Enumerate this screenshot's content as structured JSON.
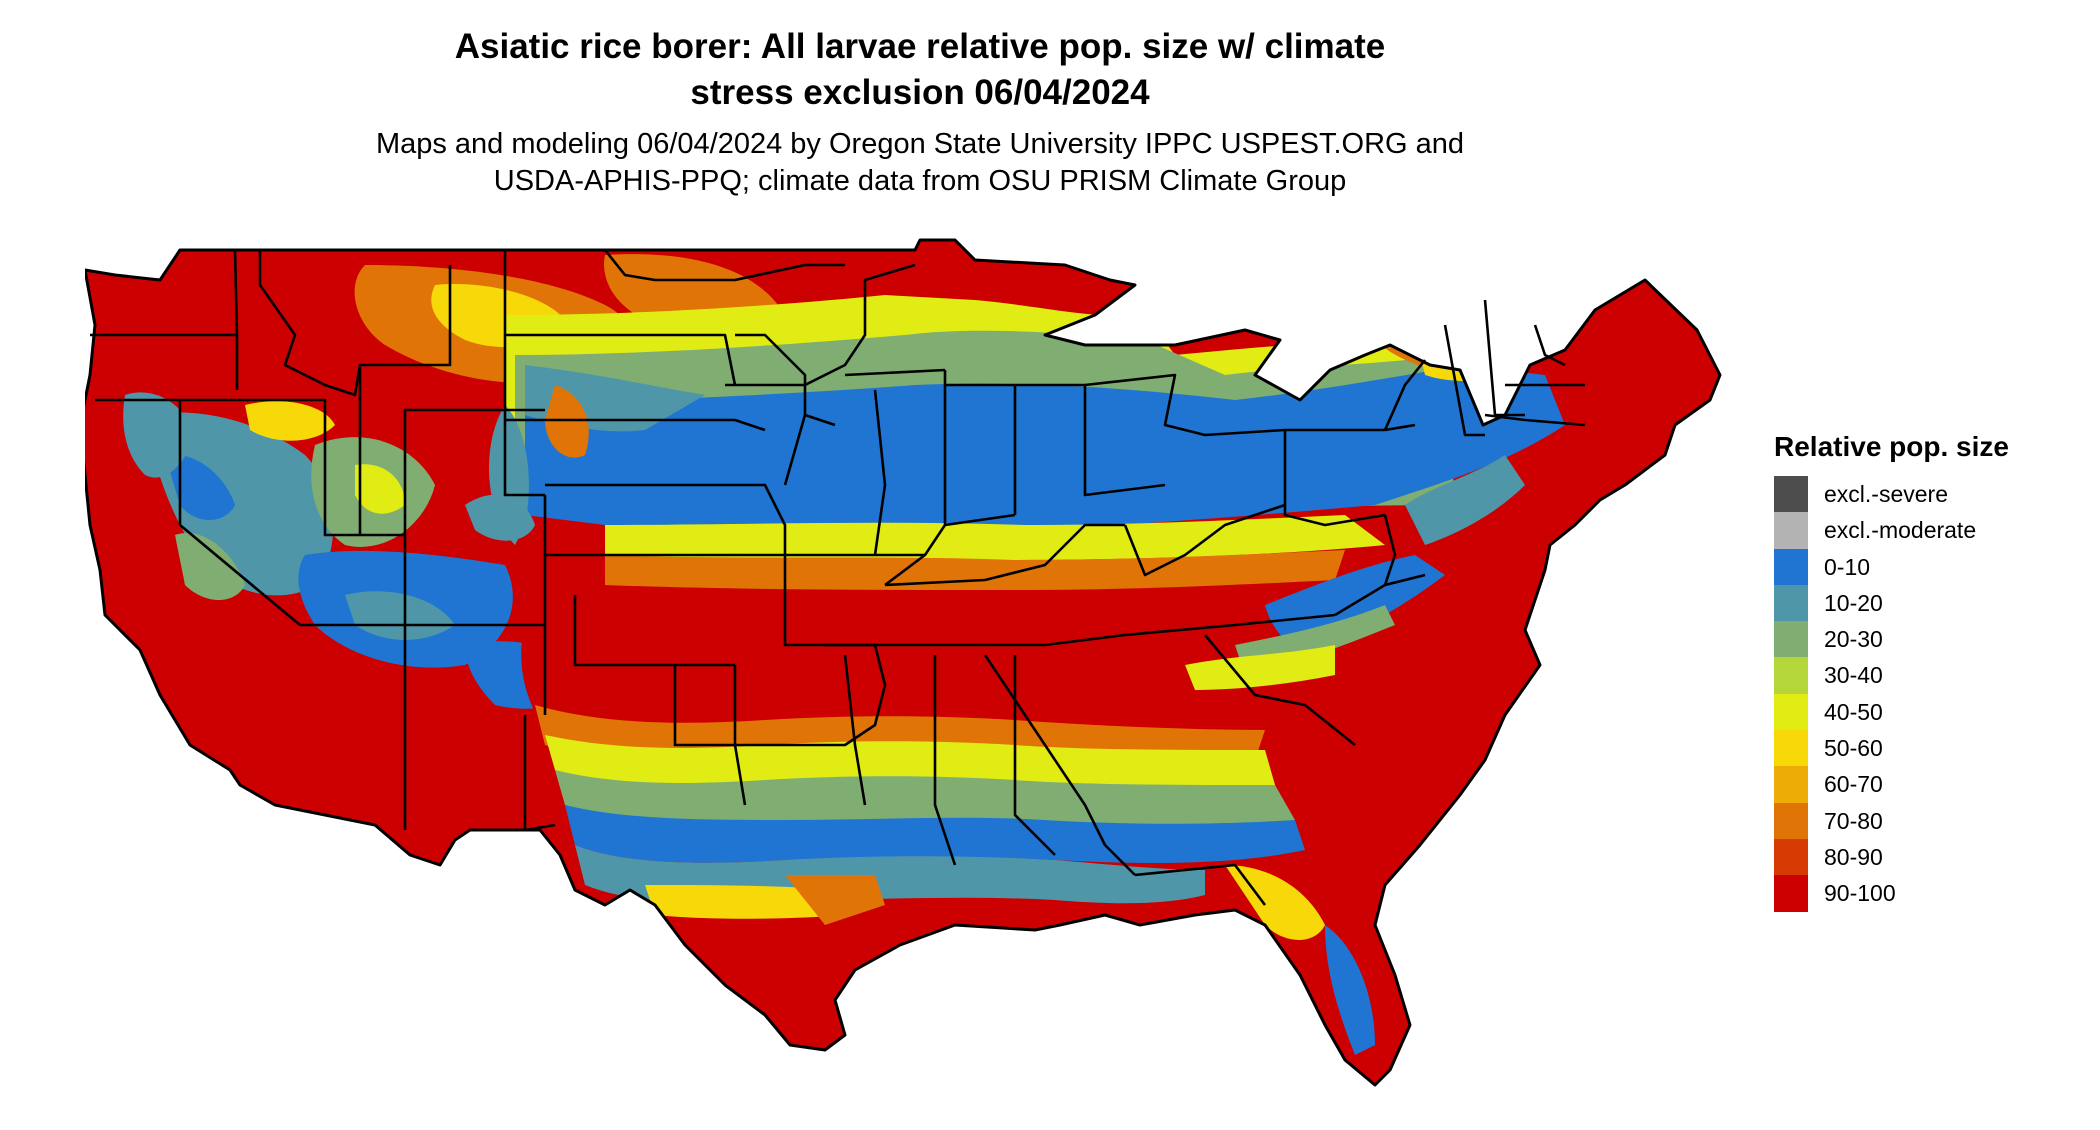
{
  "title_line1": "Asiatic rice borer: All larvae relative pop. size w/ climate",
  "title_line2": "stress exclusion 06/04/2024",
  "subtitle_line1": "Maps and modeling 06/04/2024 by Oregon State University IPPC USPEST.ORG and",
  "subtitle_line2": "USDA-APHIS-PPQ; climate data from OSU PRISM Climate Group",
  "legend": {
    "title": "Relative pop. size",
    "items": [
      {
        "label": "excl.-severe",
        "color": "#4d4d4d"
      },
      {
        "label": "excl.-moderate",
        "color": "#b3b3b3"
      },
      {
        "label": "0-10",
        "color": "#1f75d1"
      },
      {
        "label": "10-20",
        "color": "#4f97a8"
      },
      {
        "label": "20-30",
        "color": "#7fad72"
      },
      {
        "label": "30-40",
        "color": "#b5d63b"
      },
      {
        "label": "40-50",
        "color": "#e1ec14"
      },
      {
        "label": "50-60",
        "color": "#f7d808"
      },
      {
        "label": "60-70",
        "color": "#eeac06"
      },
      {
        "label": "70-80",
        "color": "#e07406"
      },
      {
        "label": "80-90",
        "color": "#d73a03"
      },
      {
        "label": "90-100",
        "color": "#cc0000"
      }
    ]
  }
}
